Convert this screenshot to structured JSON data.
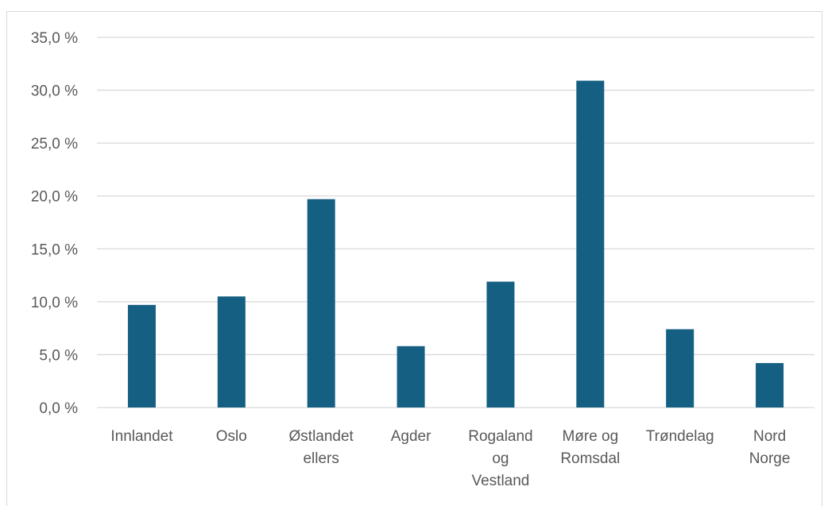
{
  "chart_data": {
    "type": "bar",
    "categories": [
      [
        "Innlandet"
      ],
      [
        "Oslo"
      ],
      [
        "Østlandet",
        "ellers"
      ],
      [
        "Agder"
      ],
      [
        "Rogaland",
        "og",
        "Vestland"
      ],
      [
        "Møre og",
        "Romsdal"
      ],
      [
        "Trøndelag"
      ],
      [
        "Nord",
        "Norge"
      ]
    ],
    "values": [
      9.7,
      10.5,
      19.7,
      5.8,
      11.9,
      30.9,
      7.4,
      4.2
    ],
    "unit": "%",
    "ylim": [
      0,
      35
    ],
    "yticks": [
      "0,0 %",
      "5,0 %",
      "10,0 %",
      "15,0 %",
      "20,0 %",
      "25,0 %",
      "30,0 %",
      "35,0 %"
    ],
    "grid": true,
    "bar_color": "#155f82",
    "grid_color": "#d9d9d9",
    "title": "",
    "xlabel": "",
    "ylabel": ""
  }
}
